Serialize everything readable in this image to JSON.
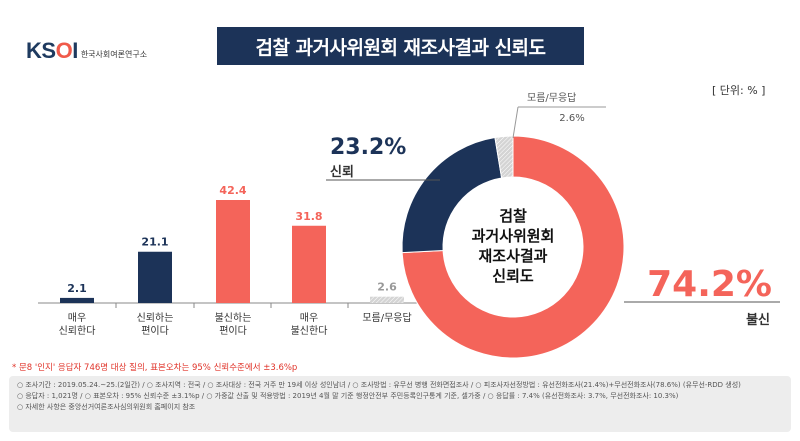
{
  "brand": {
    "logo": "KSOI",
    "name": "한국사회여론연구소"
  },
  "title": "검찰 과거사위원회 재조사결과 신뢰도",
  "unit_label": "[ 단위: % ]",
  "colors": {
    "navy": "#1c3358",
    "red": "#f4645a",
    "gray": "#c8c8c8"
  },
  "chart_data": [
    {
      "type": "bar",
      "categories": [
        "매우\n신뢰한다",
        "신뢰하는\n편이다",
        "불신하는\n편이다",
        "매우\n불신한다",
        "모름/무응답"
      ],
      "values": [
        2.1,
        21.1,
        42.4,
        31.8,
        2.6
      ],
      "value_labels": [
        "2.1",
        "21.1",
        "42.4",
        "31.8",
        "2.6"
      ],
      "colors": [
        "#1c3358",
        "#1c3358",
        "#f4645a",
        "#f4645a",
        "#c8c8c8"
      ],
      "ylim": [
        0,
        42.4
      ],
      "title": "",
      "xlabel": "",
      "ylabel": ""
    },
    {
      "type": "pie",
      "labels": [
        "불신",
        "신뢰",
        "모름/무응답"
      ],
      "values": [
        74.2,
        23.2,
        2.6
      ],
      "value_labels": [
        "74.2%",
        "23.2%",
        "2.6%"
      ],
      "colors": [
        "#f4645a",
        "#1c3358",
        "#c8c8c8"
      ],
      "center_label": [
        "검찰",
        "과거사위원회",
        "재조사결과",
        "신뢰도"
      ],
      "donut": true
    }
  ],
  "footnote": "* 문8 '인지' 응답자 746명 대상 질의, 표본오차는 95% 신뢰수준에서 ±3.6%p",
  "survey_info": [
    "○ 조사기간 : 2019.05.24.~25.(2일간) / ○ 조사지역 : 전국 / ○ 조사대상 : 전국 거주 만 19세 이상 성인남녀 / ○ 조사방법 : 유무선 병행 전화면접조사 / ○ 피조사자선정방법 : 유선전화조사(21.4%)+무선전화조사(78.6%) (유무선-RDD 생성)",
    "○ 응답자 : 1,021명 / ○ 표본오차 : 95% 신뢰수준 ±3.1%p / ○ 가중값 산출 및 적용방법 : 2019년 4월 말 기준 행정안전부 주민등록인구통계 기준, 셀가중 / ○ 응답률 : 7.4% (유선전화조사: 3.7%, 무선전화조사: 10.3%)",
    "○ 자세한 사항은 중앙선거여론조사심의위원회 홈페이지 참조"
  ]
}
